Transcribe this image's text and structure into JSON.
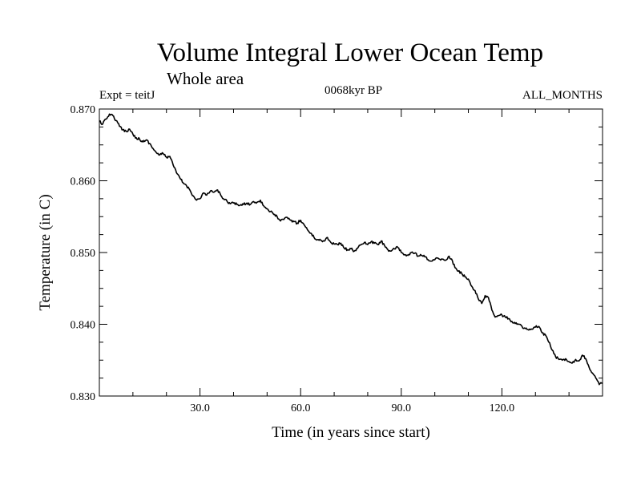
{
  "chart_data": {
    "type": "line",
    "title": "Volume Integral Lower Ocean Temp",
    "subtitle": "Whole area",
    "experiment_label": "Expt = teitJ",
    "period_label": "0068kyr BP",
    "months_label": "ALL_MONTHS",
    "xlabel": "Time (in years since start)",
    "ylabel": "Temperature (in C)",
    "xlim": [
      0,
      150
    ],
    "ylim": [
      0.83,
      0.87
    ],
    "x_major_ticks": [
      30,
      60,
      90,
      120
    ],
    "x_minor_ticks": [
      10,
      20,
      40,
      50,
      70,
      80,
      100,
      110,
      130,
      140
    ],
    "x_tick_labels": [
      "30.0",
      "60.0",
      "90.0",
      "120.0"
    ],
    "y_major_ticks": [
      0.83,
      0.84,
      0.85,
      0.86,
      0.87
    ],
    "y_minor_ticks": [
      0.8325,
      0.835,
      0.8375,
      0.8425,
      0.845,
      0.8475,
      0.8525,
      0.855,
      0.8575,
      0.8625,
      0.865,
      0.8675
    ],
    "y_tick_labels": [
      "0.830",
      "0.840",
      "0.850",
      "0.860",
      "0.870"
    ],
    "grid": false,
    "series": [
      {
        "name": "Volume integral lower ocean temperature",
        "x": [
          0,
          1,
          2,
          3,
          4,
          5,
          6,
          7,
          8,
          9,
          10,
          11,
          12,
          13,
          14,
          15,
          16,
          17,
          18,
          19,
          20,
          21,
          22,
          23,
          24,
          25,
          26,
          27,
          28,
          29,
          30,
          31,
          32,
          33,
          34,
          35,
          36,
          37,
          38,
          39,
          40,
          41,
          42,
          43,
          44,
          45,
          46,
          47,
          48,
          49,
          50,
          51,
          52,
          53,
          54,
          55,
          56,
          57,
          58,
          59,
          60,
          61,
          62,
          63,
          64,
          65,
          66,
          67,
          68,
          69,
          70,
          71,
          72,
          73,
          74,
          75,
          76,
          77,
          78,
          79,
          80,
          81,
          82,
          83,
          84,
          85,
          86,
          87,
          88,
          89,
          90,
          91,
          92,
          93,
          94,
          95,
          96,
          97,
          98,
          99,
          100,
          101,
          102,
          103,
          104,
          105,
          106,
          107,
          108,
          109,
          110,
          111,
          112,
          113,
          114,
          115,
          116,
          117,
          118,
          119,
          120,
          121,
          122,
          123,
          124,
          125,
          126,
          127,
          128,
          129,
          130,
          131,
          132,
          133,
          134,
          135,
          136,
          137,
          138,
          139,
          140,
          141,
          142,
          143,
          144,
          145,
          146,
          147,
          148,
          149,
          150
        ],
        "y": [
          0.8683,
          0.8679,
          0.8686,
          0.8693,
          0.8691,
          0.8684,
          0.8676,
          0.8671,
          0.8669,
          0.8672,
          0.8665,
          0.866,
          0.8658,
          0.8654,
          0.8657,
          0.8652,
          0.8645,
          0.8639,
          0.8636,
          0.8638,
          0.8633,
          0.8634,
          0.8622,
          0.8611,
          0.8604,
          0.8597,
          0.8593,
          0.8587,
          0.8579,
          0.8573,
          0.8575,
          0.8583,
          0.858,
          0.8585,
          0.8584,
          0.8587,
          0.8582,
          0.8575,
          0.8572,
          0.8568,
          0.8569,
          0.8567,
          0.8566,
          0.8567,
          0.8569,
          0.8567,
          0.8571,
          0.857,
          0.8573,
          0.8565,
          0.8561,
          0.8557,
          0.8553,
          0.855,
          0.8544,
          0.8546,
          0.8549,
          0.8545,
          0.8543,
          0.8541,
          0.8545,
          0.8539,
          0.8532,
          0.8527,
          0.8521,
          0.8518,
          0.8517,
          0.8516,
          0.8521,
          0.8514,
          0.8512,
          0.8511,
          0.8513,
          0.8506,
          0.8504,
          0.8505,
          0.8502,
          0.8506,
          0.8511,
          0.8514,
          0.8511,
          0.8515,
          0.8513,
          0.8511,
          0.8516,
          0.851,
          0.8504,
          0.8502,
          0.8505,
          0.8507,
          0.85,
          0.8497,
          0.8496,
          0.85,
          0.8499,
          0.8495,
          0.8496,
          0.8494,
          0.849,
          0.8488,
          0.849,
          0.8492,
          0.8491,
          0.8489,
          0.8494,
          0.8491,
          0.8479,
          0.8474,
          0.8471,
          0.8466,
          0.8463,
          0.8453,
          0.8447,
          0.8435,
          0.8429,
          0.844,
          0.8437,
          0.842,
          0.841,
          0.8412,
          0.8413,
          0.841,
          0.8408,
          0.8404,
          0.8401,
          0.84,
          0.8397,
          0.8394,
          0.8392,
          0.8393,
          0.8396,
          0.8397,
          0.8388,
          0.8385,
          0.8375,
          0.8364,
          0.8355,
          0.8351,
          0.835,
          0.8352,
          0.8348,
          0.8346,
          0.8351,
          0.8349,
          0.8357,
          0.8352,
          0.834,
          0.8332,
          0.8325,
          0.8316,
          0.8318
        ]
      }
    ]
  }
}
